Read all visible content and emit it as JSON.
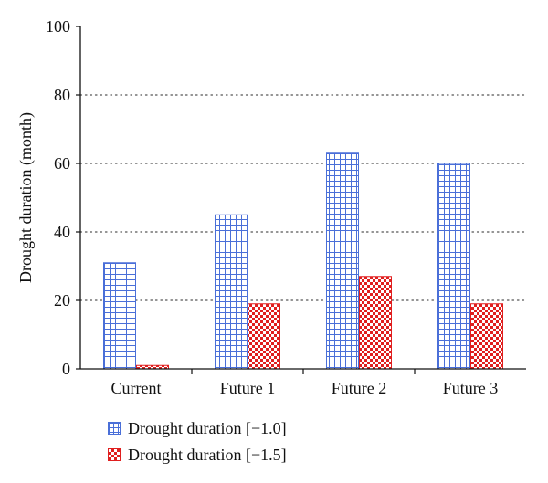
{
  "chart_data": {
    "type": "bar",
    "title": "",
    "xlabel": "",
    "ylabel": "Drought duration (month)",
    "categories": [
      "Current",
      "Future 1",
      "Future 2",
      "Future 3"
    ],
    "series": [
      {
        "name": "Drought duration [−1.0]",
        "values": [
          31,
          45,
          63,
          60
        ],
        "color": "#4a6fd8",
        "pattern": "grid"
      },
      {
        "name": "Drought duration [−1.5]",
        "values": [
          1,
          19,
          27,
          19
        ],
        "color": "#e01f1f",
        "pattern": "checker"
      }
    ],
    "ylim": [
      0,
      100
    ],
    "yticks": [
      0,
      20,
      40,
      60,
      80,
      100
    ],
    "grid": {
      "horizontal": true,
      "style": "dotted"
    },
    "legend": {
      "position": "bottom-left"
    }
  }
}
